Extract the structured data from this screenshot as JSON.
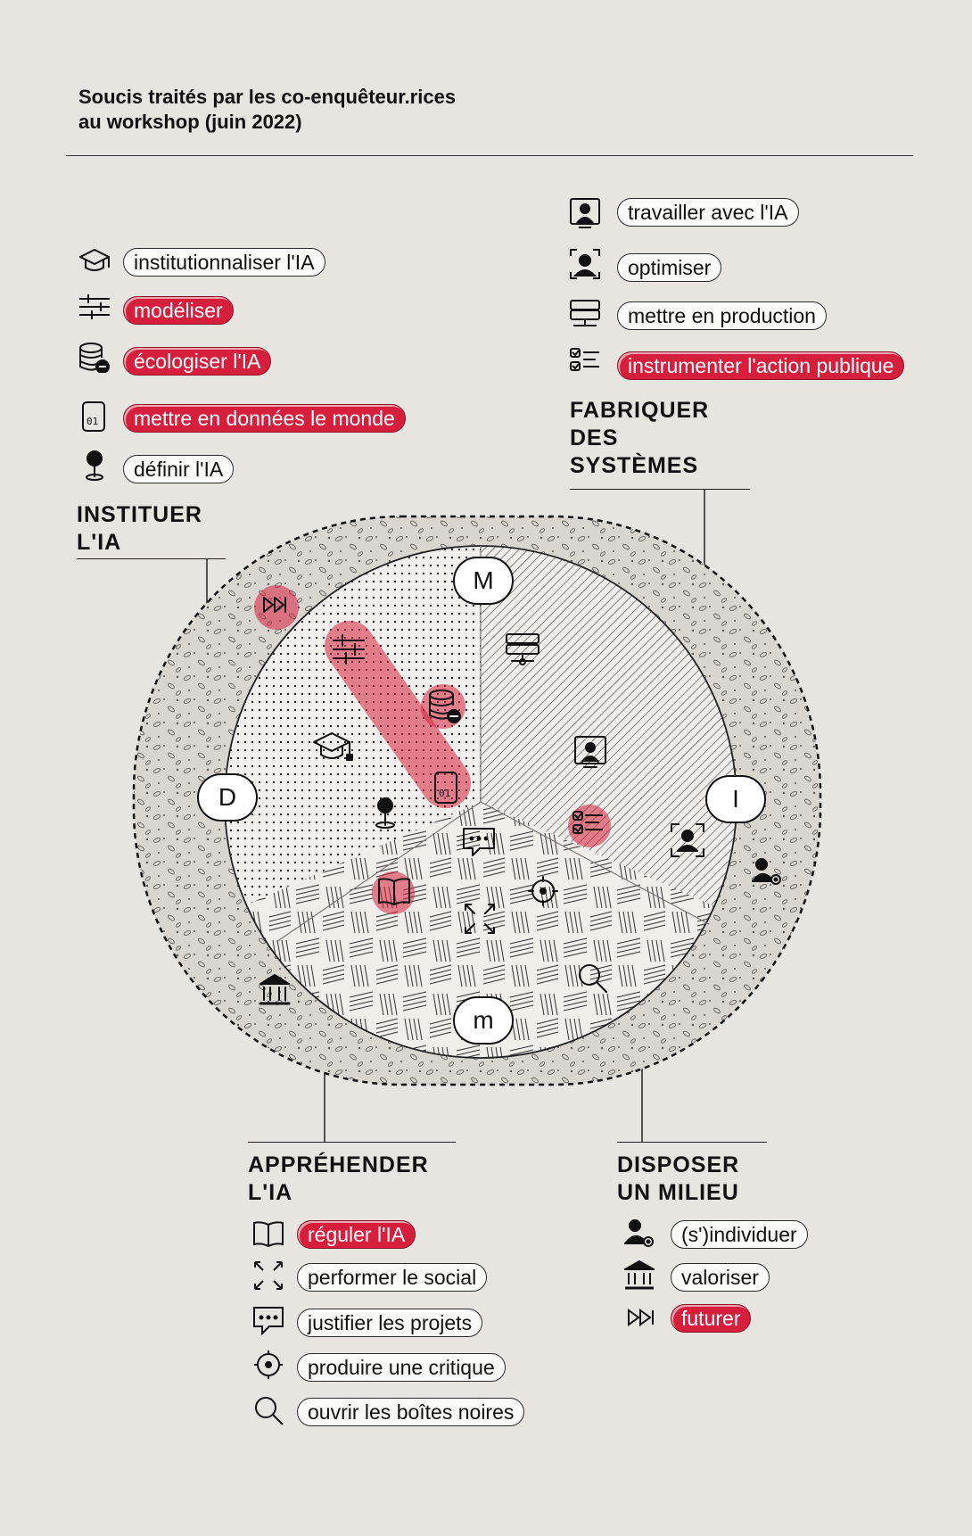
{
  "header": {
    "title_line1": "Soucis traités par les co-enquêteur.rices",
    "title_line2": "au workshop (juin 2022)"
  },
  "colors": {
    "background": "#e7e5e0",
    "highlight": "#d51f3d",
    "ink": "#111111"
  },
  "groups": {
    "instituer": {
      "line1": "INSTITUER",
      "line2": "L'IA"
    },
    "fabriquer": {
      "line1": "FABRIQUER",
      "line2": "DES",
      "line3": "SYSTÈMES"
    },
    "apprehender": {
      "line1": "APPRÉHENDER",
      "line2": "L'IA"
    },
    "disposer": {
      "line1": "DISPOSER",
      "line2": "UN MILIEU"
    }
  },
  "concerns": {
    "institutionnaliser": {
      "label": "institutionnaliser l'IA",
      "icon": "graduation-cap-icon",
      "highlighted": false
    },
    "modeliser": {
      "label": "modéliser",
      "icon": "sliders-icon",
      "highlighted": true
    },
    "ecologiser": {
      "label": "écologiser l'IA",
      "icon": "database-minus-icon",
      "highlighted": true
    },
    "mettre_donnees": {
      "label": "mettre en données le monde",
      "icon": "binary-file-icon",
      "highlighted": true
    },
    "definir": {
      "label": "définir l'IA",
      "icon": "map-pin-icon",
      "highlighted": false
    },
    "travailler": {
      "label": "travailler avec l'IA",
      "icon": "user-screen-icon",
      "highlighted": false
    },
    "optimiser": {
      "label": "optimiser",
      "icon": "user-focus-icon",
      "highlighted": false
    },
    "production": {
      "label": "mettre en production",
      "icon": "server-icon",
      "highlighted": false
    },
    "instrumenter": {
      "label": "instrumenter l'action publique",
      "icon": "checklist-icon",
      "highlighted": true
    },
    "reguler": {
      "label": "réguler l'IA",
      "icon": "book-icon",
      "highlighted": true
    },
    "performer": {
      "label": "performer le social",
      "icon": "expand-arrows-icon",
      "highlighted": false
    },
    "justifier": {
      "label": "justifier les projets",
      "icon": "chat-bubble-icon",
      "highlighted": false
    },
    "critique": {
      "label": "produire une critique",
      "icon": "crosshair-icon",
      "highlighted": false
    },
    "boites": {
      "label": "ouvrir les boîtes noires",
      "icon": "magnifier-icon",
      "highlighted": false
    },
    "individuer": {
      "label": "(s')individuer",
      "icon": "user-gear-icon",
      "highlighted": false
    },
    "valoriser": {
      "label": "valoriser",
      "icon": "bank-icon",
      "highlighted": false
    },
    "futurer": {
      "label": "futurer",
      "icon": "fast-forward-icon",
      "highlighted": true
    }
  },
  "nodes": {
    "top": "M",
    "left": "D",
    "right": "I",
    "bottom": "m"
  }
}
